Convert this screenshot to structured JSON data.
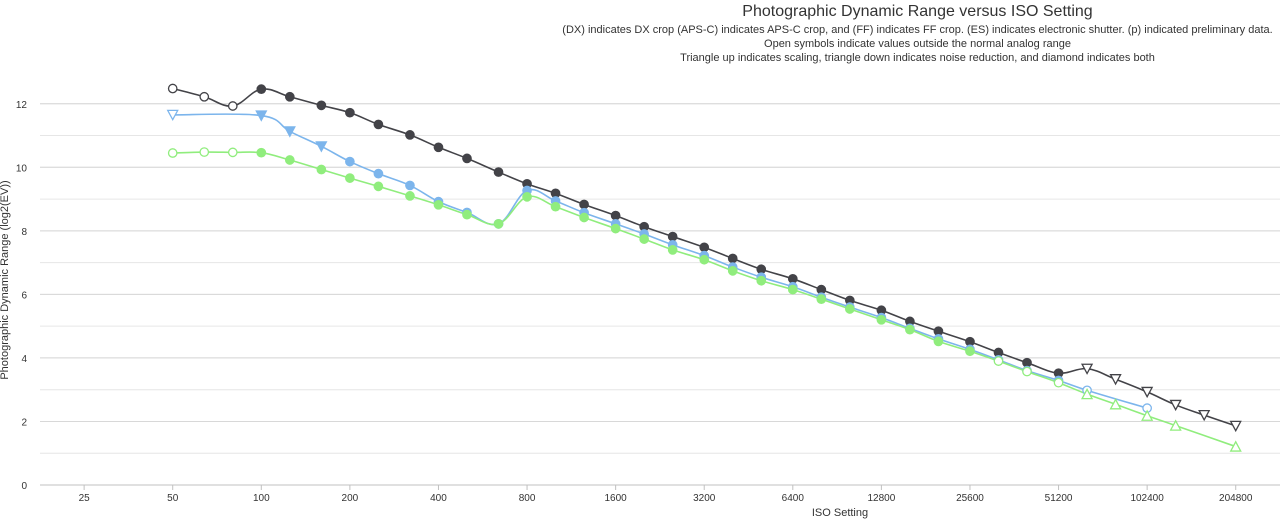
{
  "chart_data": {
    "type": "line",
    "title": "Photographic Dynamic Range versus ISO Setting",
    "subtitle_lines": [
      "(DX) indicates DX crop (APS-C) indicates APS-C crop, and (FF) indicates FF crop. (ES) indicates electronic shutter. (p) indicated preliminary data.",
      "Open symbols indicate values outside the normal analog range",
      "Triangle up indicates scaling, triangle down indicates noise reduction, and diamond indicates both"
    ],
    "xlabel": "ISO Setting",
    "ylabel": "Photographic Dynamic Range (log2(EV))",
    "x_scale": "log2",
    "x_ticks": [
      25,
      50,
      100,
      200,
      400,
      800,
      1600,
      3200,
      6400,
      12800,
      25600,
      51200,
      102400,
      204800
    ],
    "x_range": [
      17.7,
      289600
    ],
    "y_ticks": [
      0,
      2,
      4,
      6,
      8,
      10,
      12
    ],
    "y_range": [
      0,
      13
    ],
    "grid": "horizontal",
    "series": [
      {
        "color": "#434348",
        "points": [
          {
            "x": 50,
            "y": 12.48,
            "m": "circle-open"
          },
          {
            "x": 64,
            "y": 12.22,
            "m": "circle-open"
          },
          {
            "x": 80,
            "y": 11.93,
            "m": "circle-open"
          },
          {
            "x": 100,
            "y": 12.46,
            "m": "circle"
          },
          {
            "x": 125,
            "y": 12.22,
            "m": "circle"
          },
          {
            "x": 160,
            "y": 11.95,
            "m": "circle"
          },
          {
            "x": 200,
            "y": 11.72,
            "m": "circle"
          },
          {
            "x": 250,
            "y": 11.35,
            "m": "circle"
          },
          {
            "x": 320,
            "y": 11.02,
            "m": "circle"
          },
          {
            "x": 400,
            "y": 10.63,
            "m": "circle"
          },
          {
            "x": 500,
            "y": 10.28,
            "m": "circle"
          },
          {
            "x": 640,
            "y": 9.85,
            "m": "circle"
          },
          {
            "x": 800,
            "y": 9.48,
            "m": "circle"
          },
          {
            "x": 1000,
            "y": 9.18,
            "m": "circle"
          },
          {
            "x": 1250,
            "y": 8.83,
            "m": "circle"
          },
          {
            "x": 1600,
            "y": 8.48,
            "m": "circle"
          },
          {
            "x": 2000,
            "y": 8.13,
            "m": "circle"
          },
          {
            "x": 2500,
            "y": 7.82,
            "m": "circle"
          },
          {
            "x": 3200,
            "y": 7.48,
            "m": "circle"
          },
          {
            "x": 4000,
            "y": 7.13,
            "m": "circle"
          },
          {
            "x": 5000,
            "y": 6.79,
            "m": "circle"
          },
          {
            "x": 6400,
            "y": 6.49,
            "m": "circle"
          },
          {
            "x": 8000,
            "y": 6.15,
            "m": "circle"
          },
          {
            "x": 10000,
            "y": 5.81,
            "m": "circle"
          },
          {
            "x": 12800,
            "y": 5.5,
            "m": "circle"
          },
          {
            "x": 16000,
            "y": 5.15,
            "m": "circle"
          },
          {
            "x": 20000,
            "y": 4.84,
            "m": "circle"
          },
          {
            "x": 25600,
            "y": 4.51,
            "m": "circle"
          },
          {
            "x": 32000,
            "y": 4.17,
            "m": "circle"
          },
          {
            "x": 40000,
            "y": 3.85,
            "m": "circle"
          },
          {
            "x": 51200,
            "y": 3.52,
            "m": "circle"
          },
          {
            "x": 64000,
            "y": 3.66,
            "m": "tri-down-open"
          },
          {
            "x": 80000,
            "y": 3.33,
            "m": "tri-down-open"
          },
          {
            "x": 102400,
            "y": 2.93,
            "m": "tri-down-open"
          },
          {
            "x": 128000,
            "y": 2.52,
            "m": "tri-down-open"
          },
          {
            "x": 160000,
            "y": 2.2,
            "m": "tri-down-open"
          },
          {
            "x": 204800,
            "y": 1.86,
            "m": "tri-down-open"
          }
        ]
      },
      {
        "color": "#7cb5ec",
        "points": [
          {
            "x": 50,
            "y": 11.65,
            "m": "tri-down-open"
          },
          {
            "x": 100,
            "y": 11.63,
            "m": "tri-down"
          },
          {
            "x": 125,
            "y": 11.13,
            "m": "tri-down"
          },
          {
            "x": 160,
            "y": 10.66,
            "m": "tri-down"
          },
          {
            "x": 200,
            "y": 10.18,
            "m": "circle"
          },
          {
            "x": 250,
            "y": 9.8,
            "m": "circle"
          },
          {
            "x": 320,
            "y": 9.43,
            "m": "circle"
          },
          {
            "x": 400,
            "y": 8.92,
            "m": "circle"
          },
          {
            "x": 500,
            "y": 8.58,
            "m": "circle"
          },
          {
            "x": 640,
            "y": 8.22,
            "m": "circle"
          },
          {
            "x": 800,
            "y": 9.27,
            "m": "circle"
          },
          {
            "x": 1000,
            "y": 8.94,
            "m": "circle"
          },
          {
            "x": 1250,
            "y": 8.57,
            "m": "circle"
          },
          {
            "x": 1600,
            "y": 8.22,
            "m": "circle"
          },
          {
            "x": 2000,
            "y": 7.9,
            "m": "circle"
          },
          {
            "x": 2500,
            "y": 7.56,
            "m": "circle"
          },
          {
            "x": 3200,
            "y": 7.22,
            "m": "circle"
          },
          {
            "x": 4000,
            "y": 6.86,
            "m": "circle"
          },
          {
            "x": 5000,
            "y": 6.54,
            "m": "circle"
          },
          {
            "x": 6400,
            "y": 6.24,
            "m": "circle"
          },
          {
            "x": 8000,
            "y": 5.91,
            "m": "circle"
          },
          {
            "x": 10000,
            "y": 5.6,
            "m": "circle"
          },
          {
            "x": 12800,
            "y": 5.27,
            "m": "circle"
          },
          {
            "x": 16000,
            "y": 4.93,
            "m": "circle"
          },
          {
            "x": 20000,
            "y": 4.6,
            "m": "circle"
          },
          {
            "x": 25600,
            "y": 4.27,
            "m": "circle"
          },
          {
            "x": 32000,
            "y": 3.94,
            "m": "circle"
          },
          {
            "x": 40000,
            "y": 3.6,
            "m": "circle"
          },
          {
            "x": 51200,
            "y": 3.29,
            "m": "circle"
          },
          {
            "x": 64000,
            "y": 2.98,
            "m": "circle-open"
          },
          {
            "x": 102400,
            "y": 2.42,
            "m": "circle-open"
          }
        ]
      },
      {
        "color": "#90ed7d",
        "points": [
          {
            "x": 50,
            "y": 10.45,
            "m": "circle-open"
          },
          {
            "x": 64,
            "y": 10.48,
            "m": "circle-open"
          },
          {
            "x": 80,
            "y": 10.47,
            "m": "circle-open"
          },
          {
            "x": 100,
            "y": 10.46,
            "m": "circle"
          },
          {
            "x": 125,
            "y": 10.23,
            "m": "circle"
          },
          {
            "x": 160,
            "y": 9.93,
            "m": "circle"
          },
          {
            "x": 200,
            "y": 9.66,
            "m": "circle"
          },
          {
            "x": 250,
            "y": 9.4,
            "m": "circle"
          },
          {
            "x": 320,
            "y": 9.1,
            "m": "circle"
          },
          {
            "x": 400,
            "y": 8.82,
            "m": "circle"
          },
          {
            "x": 500,
            "y": 8.51,
            "m": "circle"
          },
          {
            "x": 640,
            "y": 8.22,
            "m": "circle"
          },
          {
            "x": 800,
            "y": 9.07,
            "m": "circle"
          },
          {
            "x": 1000,
            "y": 8.76,
            "m": "circle"
          },
          {
            "x": 1250,
            "y": 8.42,
            "m": "circle"
          },
          {
            "x": 1600,
            "y": 8.07,
            "m": "circle"
          },
          {
            "x": 2000,
            "y": 7.74,
            "m": "circle"
          },
          {
            "x": 2500,
            "y": 7.4,
            "m": "circle"
          },
          {
            "x": 3200,
            "y": 7.09,
            "m": "circle"
          },
          {
            "x": 4000,
            "y": 6.74,
            "m": "circle"
          },
          {
            "x": 5000,
            "y": 6.43,
            "m": "circle"
          },
          {
            "x": 6400,
            "y": 6.15,
            "m": "circle"
          },
          {
            "x": 8000,
            "y": 5.85,
            "m": "circle"
          },
          {
            "x": 10000,
            "y": 5.54,
            "m": "circle"
          },
          {
            "x": 12800,
            "y": 5.2,
            "m": "circle"
          },
          {
            "x": 16000,
            "y": 4.89,
            "m": "circle"
          },
          {
            "x": 20000,
            "y": 4.52,
            "m": "circle"
          },
          {
            "x": 25600,
            "y": 4.21,
            "m": "circle"
          },
          {
            "x": 32000,
            "y": 3.9,
            "m": "circle-open"
          },
          {
            "x": 40000,
            "y": 3.57,
            "m": "circle-open"
          },
          {
            "x": 51200,
            "y": 3.22,
            "m": "circle-open"
          },
          {
            "x": 64000,
            "y": 2.86,
            "m": "tri-up-open"
          },
          {
            "x": 80000,
            "y": 2.54,
            "m": "tri-up-open"
          },
          {
            "x": 102400,
            "y": 2.18,
            "m": "tri-up-open"
          },
          {
            "x": 128000,
            "y": 1.87,
            "m": "tri-up-open"
          },
          {
            "x": 204800,
            "y": 1.21,
            "m": "tri-up-open"
          }
        ]
      }
    ]
  }
}
